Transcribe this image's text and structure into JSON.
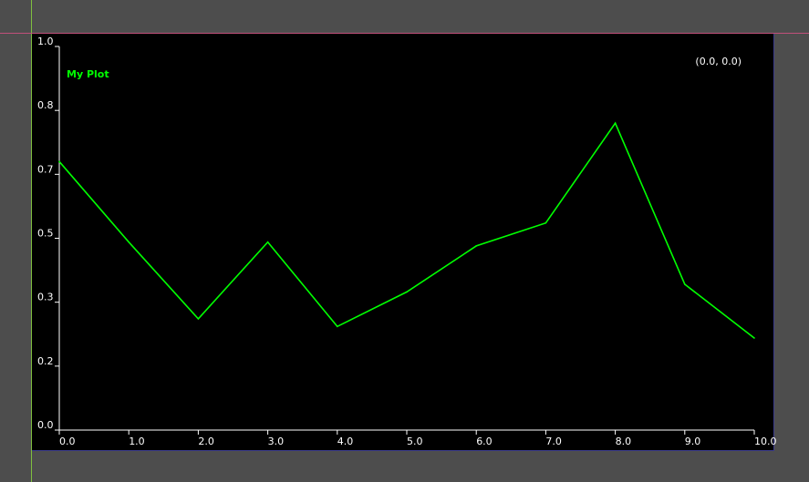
{
  "chart_data": {
    "type": "line",
    "title": "",
    "xlabel": "",
    "ylabel": "",
    "xlim": [
      0,
      10
    ],
    "ylim": [
      0,
      1
    ],
    "x_ticks": [
      {
        "value": 0,
        "label": "0.0"
      },
      {
        "value": 1,
        "label": "1.0"
      },
      {
        "value": 2,
        "label": "2.0"
      },
      {
        "value": 3,
        "label": "3.0"
      },
      {
        "value": 4,
        "label": "4.0"
      },
      {
        "value": 5,
        "label": "5.0"
      },
      {
        "value": 6,
        "label": "6.0"
      },
      {
        "value": 7,
        "label": "7.0"
      },
      {
        "value": 8,
        "label": "8.0"
      },
      {
        "value": 9,
        "label": "9.0"
      },
      {
        "value": 10,
        "label": "10.0"
      }
    ],
    "y_ticks": [
      {
        "value": 0.0,
        "label": "0.0"
      },
      {
        "value": 0.1667,
        "label": "0.2"
      },
      {
        "value": 0.3333,
        "label": "0.3"
      },
      {
        "value": 0.5,
        "label": "0.5"
      },
      {
        "value": 0.6667,
        "label": "0.7"
      },
      {
        "value": 0.8333,
        "label": "0.8"
      },
      {
        "value": 1.0,
        "label": "1.0"
      }
    ],
    "grid": false,
    "legend_position": "top-left",
    "series": [
      {
        "name": "My Plot",
        "color": "#00ff00",
        "x": [
          0,
          1,
          2,
          3,
          4,
          5,
          6,
          7,
          8,
          9,
          10
        ],
        "y": [
          0.7,
          0.49,
          0.29,
          0.49,
          0.27,
          0.36,
          0.48,
          0.54,
          0.8,
          0.38,
          0.24
        ]
      }
    ],
    "readout": "(0.0, 0.0)"
  },
  "colors": {
    "background": "#4d4d4d",
    "plot_background": "#000000",
    "axis": "#ffffff",
    "series": "#00ff00"
  }
}
